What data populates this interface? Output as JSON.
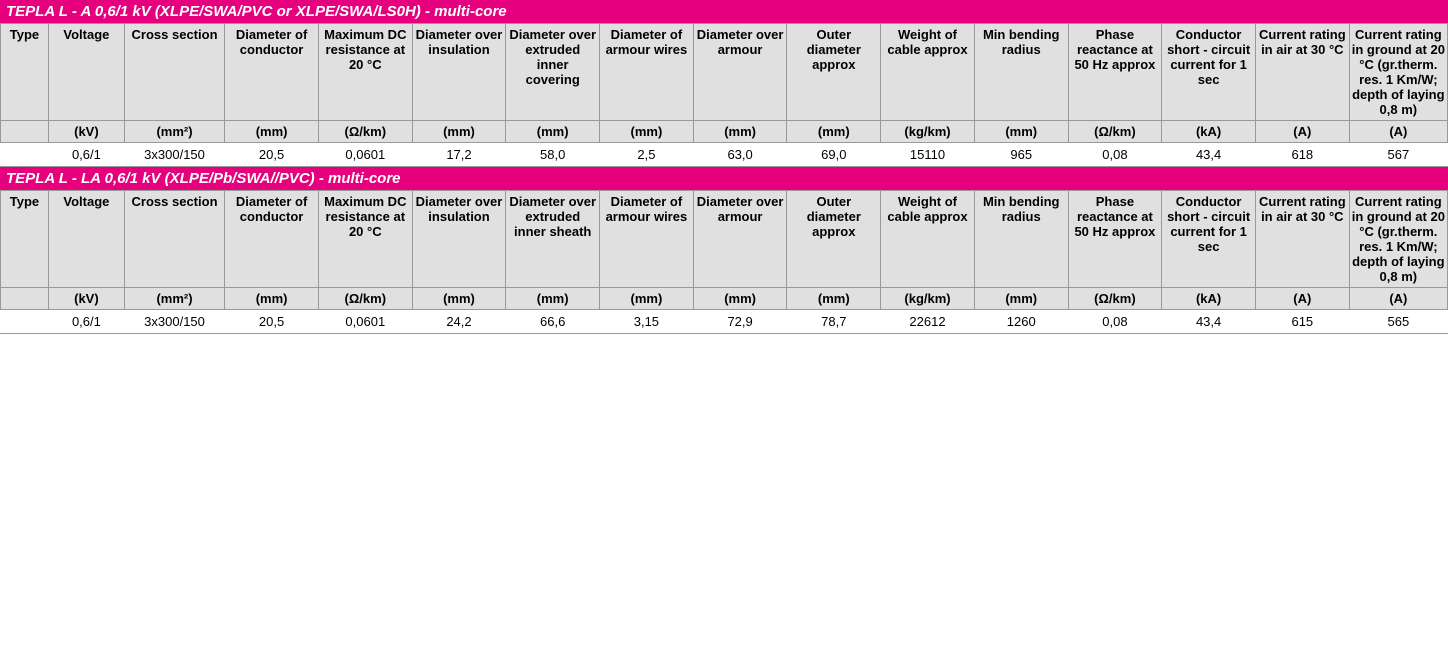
{
  "table1": {
    "header": "TEPLA L - A 0,6/1 kV (XLPE/SWA/PVC or XLPE/SWA/LS0H) - multi-core",
    "header_bg": "#e6007e",
    "columns": [
      "Type",
      "Voltage",
      "Cross section",
      "Diameter of conductor",
      "Maximum DC resistance at 20 °C",
      "Diameter over insulation",
      "Diameter over extruded inner covering",
      "Diameter of armour wires",
      "Diameter over armour",
      "Outer diameter approx",
      "Weight of cable approx",
      "Min bending radius",
      "Phase reactance at 50 Hz approx",
      "Conductor short - circuit current for 1 sec",
      "Current rating in air at 30 °C",
      "Current rating in ground at 20 °C (gr.therm. res. 1 Km/W; depth of laying 0,8 m)"
    ],
    "units": [
      "",
      "(kV)",
      "(mm²)",
      "(mm)",
      "(Ω/km)",
      "(mm)",
      "(mm)",
      "(mm)",
      "(mm)",
      "(mm)",
      "(kg/km)",
      "(mm)",
      "(Ω/km)",
      "(kA)",
      "(A)",
      "(A)"
    ],
    "row": [
      "",
      "0,6/1",
      "3x300/150",
      "20,5",
      "0,0601",
      "17,2",
      "58,0",
      "2,5",
      "63,0",
      "69,0",
      "15110",
      "965",
      "0,08",
      "43,4",
      "618",
      "567"
    ]
  },
  "table2": {
    "header": "TEPLA L - LA 0,6/1 kV (XLPE/Pb/SWA//PVC) - multi-core",
    "header_bg": "#e6007e",
    "columns": [
      "Type",
      "Voltage",
      "Cross section",
      "Diameter of conductor",
      "Maximum DC resistance at 20 °C",
      "Diameter over insulation",
      "Diameter over extruded inner sheath",
      "Diameter of armour wires",
      "Diameter over armour",
      "Outer diameter approx",
      "Weight of cable approx",
      "Min bending radius",
      "Phase reactance at 50 Hz approx",
      "Conductor short - circuit current for 1 sec",
      "Current rating in air at 30 °C",
      "Current rating in ground at 20 °C (gr.therm. res. 1 Km/W; depth of laying 0,8 m)"
    ],
    "units": [
      "",
      "(kV)",
      "(mm²)",
      "(mm)",
      "(Ω/km)",
      "(mm)",
      "(mm)",
      "(mm)",
      "(mm)",
      "(mm)",
      "(kg/km)",
      "(mm)",
      "(Ω/km)",
      "(kA)",
      "(A)",
      "(A)"
    ],
    "row": [
      "",
      "0,6/1",
      "3x300/150",
      "20,5",
      "0,0601",
      "24,2",
      "66,6",
      "3,15",
      "72,9",
      "78,7",
      "22612",
      "1260",
      "0,08",
      "43,4",
      "615",
      "565"
    ]
  },
  "colwidths": [
    "col-type",
    "col-voltage",
    "col-cross",
    "col-w",
    "col-w",
    "col-w",
    "col-w",
    "col-w",
    "col-w",
    "col-w",
    "col-w",
    "col-w",
    "col-w",
    "col-w",
    "col-w",
    "col-last"
  ]
}
